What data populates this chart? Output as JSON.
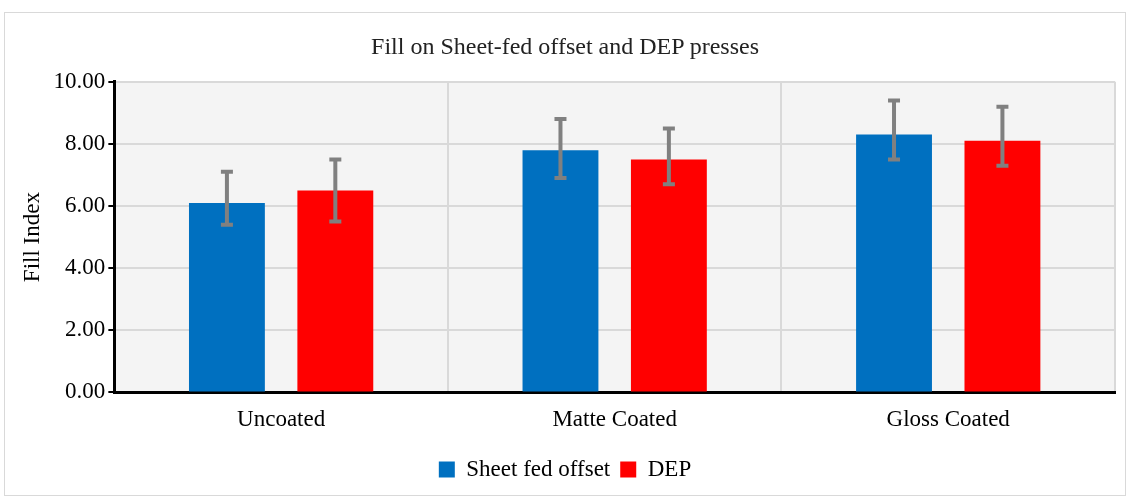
{
  "chart_data": {
    "type": "bar",
    "title": "Fill on Sheet-fed offset and DEP presses",
    "ylabel": "Fill Index",
    "categories": [
      "Uncoated",
      "Matte Coated",
      "Gloss Coated"
    ],
    "series": [
      {
        "name": "Sheet fed offset",
        "color": "#0070c0",
        "values": [
          6.1,
          7.8,
          8.3
        ],
        "errors": [
          [
            5.4,
            7.1
          ],
          [
            6.9,
            8.8
          ],
          [
            7.5,
            9.4
          ]
        ]
      },
      {
        "name": "DEP",
        "color": "#ff0000",
        "values": [
          6.5,
          7.5,
          8.1
        ],
        "errors": [
          [
            5.5,
            7.5
          ],
          [
            6.7,
            8.5
          ],
          [
            7.3,
            9.2
          ]
        ]
      }
    ],
    "ylim": [
      0,
      10
    ],
    "yticks": [
      {
        "value": 0,
        "label": "0.00"
      },
      {
        "value": 2,
        "label": "2.00"
      },
      {
        "value": 4,
        "label": "4.00"
      },
      {
        "value": 6,
        "label": "6.00"
      },
      {
        "value": 8,
        "label": "8.00"
      },
      {
        "value": 10,
        "label": "10.00"
      }
    ],
    "grid": true,
    "legend": "bottom"
  }
}
